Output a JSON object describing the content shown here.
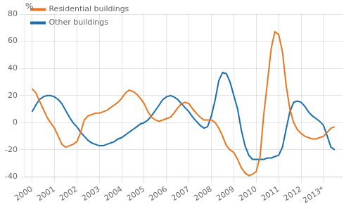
{
  "chart_data": {
    "type": "line",
    "ylabel": "%",
    "x": [
      2000.0,
      2000.17,
      2000.33,
      2000.5,
      2000.67,
      2000.83,
      2001.0,
      2001.17,
      2001.33,
      2001.5,
      2001.67,
      2001.83,
      2002.0,
      2002.17,
      2002.33,
      2002.5,
      2002.67,
      2002.83,
      2003.0,
      2003.17,
      2003.33,
      2003.5,
      2003.67,
      2003.83,
      2004.0,
      2004.17,
      2004.33,
      2004.5,
      2004.67,
      2004.83,
      2005.0,
      2005.17,
      2005.33,
      2005.5,
      2005.67,
      2005.83,
      2006.0,
      2006.17,
      2006.33,
      2006.5,
      2006.67,
      2006.83,
      2007.0,
      2007.17,
      2007.33,
      2007.5,
      2007.67,
      2007.83,
      2008.0,
      2008.17,
      2008.33,
      2008.5,
      2008.67,
      2008.83,
      2009.0,
      2009.17,
      2009.33,
      2009.5,
      2009.67,
      2009.83,
      2010.0,
      2010.17,
      2010.33,
      2010.5,
      2010.67,
      2010.83,
      2011.0,
      2011.17,
      2011.33,
      2011.5,
      2011.67,
      2011.83,
      2012.0,
      2012.17,
      2012.33,
      2012.5,
      2012.67,
      2012.83,
      2013.0,
      2013.17,
      2013.33,
      2013.5
    ],
    "series": [
      {
        "name": "Residential buildings",
        "color": "#e87722",
        "values": [
          25,
          22,
          16,
          10,
          4,
          0,
          -4,
          -10,
          -16,
          -18,
          -17,
          -16,
          -14,
          -7,
          2,
          5,
          6,
          7,
          7,
          8,
          9,
          11,
          13,
          15,
          18,
          22,
          24,
          23,
          21,
          18,
          14,
          8,
          4,
          2,
          1,
          2,
          3,
          4,
          7,
          11,
          14,
          15,
          14,
          10,
          7,
          4,
          2,
          2,
          2,
          0,
          -4,
          -10,
          -17,
          -20,
          -22,
          -27,
          -33,
          -37,
          -39,
          -38,
          -36,
          -25,
          5,
          30,
          55,
          67,
          65,
          52,
          28,
          10,
          0,
          -5,
          -8,
          -10,
          -11,
          -12,
          -12,
          -11,
          -10,
          -7,
          -4,
          -3
        ]
      },
      {
        "name": "Other buildings",
        "color": "#1a6faf",
        "values": [
          8,
          13,
          17,
          19,
          20,
          20,
          19,
          17,
          14,
          9,
          4,
          0,
          -3,
          -7,
          -10,
          -13,
          -15,
          -16,
          -17,
          -17,
          -16,
          -15,
          -14,
          -12,
          -11,
          -9,
          -7,
          -5,
          -3,
          -1,
          0,
          2,
          5,
          9,
          13,
          17,
          19,
          20,
          19,
          17,
          14,
          11,
          8,
          4,
          1,
          -2,
          -4,
          -3,
          5,
          17,
          31,
          37,
          36,
          30,
          20,
          10,
          -5,
          -17,
          -24,
          -27,
          -27,
          -27,
          -27,
          -26,
          -26,
          -25,
          -24,
          -18,
          -5,
          8,
          15,
          16,
          15,
          12,
          8,
          5,
          3,
          1,
          -2,
          -10,
          -18,
          -20
        ]
      }
    ],
    "xlim": [
      1999.7,
      2013.85
    ],
    "xticks": [
      2000,
      2001,
      2002,
      2003,
      2004,
      2005,
      2006,
      2007,
      2008,
      2009,
      2010,
      2011,
      2012,
      {
        "value": 2013,
        "label": "2013*"
      }
    ],
    "ylim": [
      -40,
      80
    ],
    "yticks": [
      -40,
      -20,
      0,
      20,
      40,
      60,
      80
    ],
    "grid": true,
    "legend": "upper left"
  }
}
